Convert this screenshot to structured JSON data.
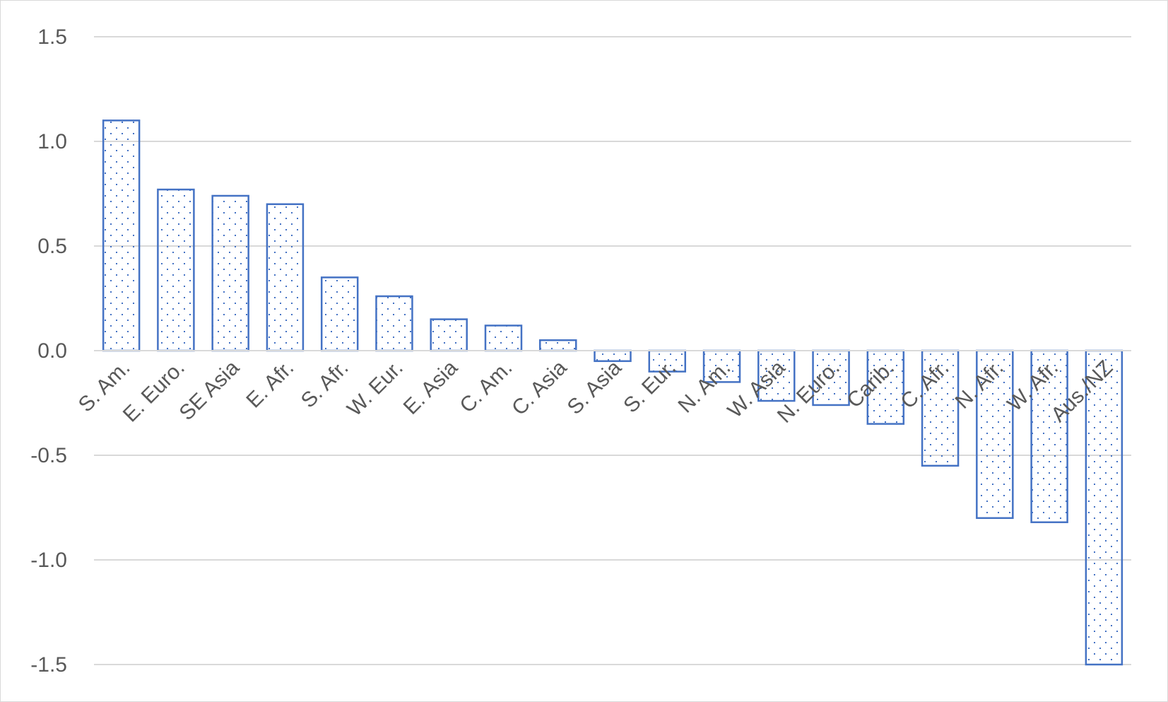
{
  "chart_data": {
    "type": "bar",
    "title": "",
    "xlabel": "",
    "ylabel": "",
    "ylim": [
      -1.5,
      1.5
    ],
    "yticks": [
      "1.5",
      "1.0",
      "0.5",
      "0.0",
      "-0.5",
      "-1.0",
      "-1.5"
    ],
    "grid": true,
    "categories": [
      "S. Am.",
      "E. Euro.",
      "SE Asia",
      "E. Afr.",
      "S. Afr.",
      "W. Eur.",
      "E. Asia",
      "C. Am.",
      "C. Asia",
      "S. Asia",
      "S. Eur.",
      "N. Am.",
      "W. Asia",
      "N. Euro.",
      "Carib.",
      "C. Afr.",
      "N. Afr.",
      "W. Afr.",
      "Aus./NZ"
    ],
    "values": [
      1.1,
      0.77,
      0.74,
      0.7,
      0.35,
      0.26,
      0.15,
      0.12,
      0.05,
      -0.05,
      -0.1,
      -0.15,
      -0.24,
      -0.26,
      -0.35,
      -0.55,
      -0.8,
      -0.82,
      -1.5
    ],
    "colors": {
      "bar_stroke": "#4472c4",
      "bar_dot": "#4472c4",
      "grid": "#d9d9d9",
      "text": "#595959"
    }
  }
}
